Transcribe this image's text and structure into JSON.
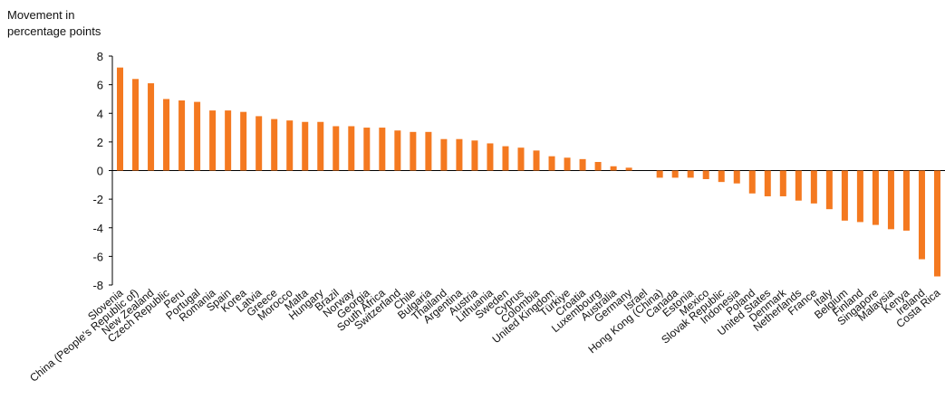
{
  "chart_data": {
    "type": "bar",
    "title": "",
    "ylabel": "Movement in\npercentage points",
    "xlabel": "",
    "ylim": [
      -8,
      8
    ],
    "yticks": [
      8,
      6,
      4,
      2,
      0,
      -2,
      -4,
      -6,
      -8
    ],
    "bar_color": "#f47920",
    "grid": false,
    "categories": [
      "Slovenia",
      "China (People's Republic of)",
      "New Zealand",
      "Czech Republic",
      "Peru",
      "Portugal",
      "Romania",
      "Spain",
      "Korea",
      "Latvia",
      "Greece",
      "Morocco",
      "Malta",
      "Hungary",
      "Brazil",
      "Norway",
      "Georgia",
      "South Africa",
      "Switzerland",
      "Chile",
      "Bulgaria",
      "Thailand",
      "Argentina",
      "Austria",
      "Lithuania",
      "Sweden",
      "Cyprus",
      "Colombia",
      "United Kingdom",
      "Türkiye",
      "Croatia",
      "Luxembourg",
      "Australia",
      "Germany",
      "Israel",
      "Hong Kong (China)",
      "Canada",
      "Estonia",
      "Mexico",
      "Slovak Republic",
      "Indonesia",
      "Poland",
      "United States",
      "Denmark",
      "Netherlands",
      "France",
      "Italy",
      "Belgium",
      "Finland",
      "Singapore",
      "Malaysia",
      "Kenya",
      "Ireland",
      "Costa Rica"
    ],
    "values": [
      7.2,
      6.4,
      6.1,
      5.0,
      4.9,
      4.8,
      4.2,
      4.2,
      4.1,
      3.8,
      3.6,
      3.5,
      3.4,
      3.4,
      3.1,
      3.1,
      3.0,
      3.0,
      2.8,
      2.7,
      2.7,
      2.2,
      2.2,
      2.1,
      1.9,
      1.7,
      1.6,
      1.4,
      1.0,
      0.9,
      0.8,
      0.6,
      0.3,
      0.2,
      0.0,
      -0.5,
      -0.5,
      -0.5,
      -0.6,
      -0.8,
      -0.9,
      -1.6,
      -1.8,
      -1.8,
      -2.1,
      -2.3,
      -2.7,
      -3.5,
      -3.6,
      -3.8,
      -4.1,
      -4.2,
      -6.2,
      -7.4
    ]
  }
}
